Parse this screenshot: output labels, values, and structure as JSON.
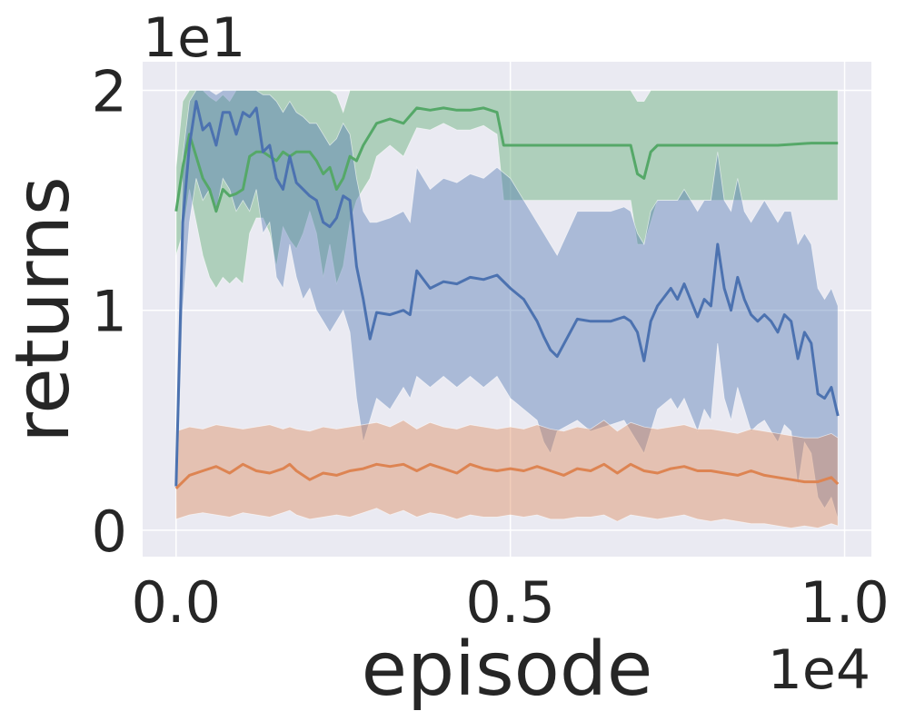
{
  "chart_data": {
    "type": "line",
    "title": "",
    "xlabel": "episode",
    "ylabel": "returns",
    "x_offset_label": "1e4",
    "y_offset_label": "1e1",
    "xlim": [
      -0.05,
      1.04
    ],
    "ylim": [
      -0.12,
      2.13
    ],
    "x_ticks": [
      0.0,
      0.5,
      1.0
    ],
    "x_tick_labels": [
      "0.0",
      "0.5",
      "1.0"
    ],
    "y_ticks": [
      0,
      1,
      2
    ],
    "y_tick_labels": [
      "0",
      "1",
      "2"
    ],
    "grid": true,
    "legend": "none",
    "colors": {
      "background": "#eaeaf2",
      "grid": "#ffffff",
      "blue": "#4c72b0",
      "orange": "#dd8452",
      "green": "#55a868"
    },
    "series": [
      {
        "color": "#55a868",
        "x": [
          0.0,
          0.01,
          0.02,
          0.03,
          0.04,
          0.05,
          0.06,
          0.07,
          0.08,
          0.09,
          0.1,
          0.11,
          0.12,
          0.13,
          0.14,
          0.15,
          0.16,
          0.17,
          0.18,
          0.19,
          0.2,
          0.21,
          0.22,
          0.23,
          0.24,
          0.25,
          0.26,
          0.27,
          0.28,
          0.29,
          0.3,
          0.32,
          0.34,
          0.36,
          0.38,
          0.4,
          0.42,
          0.44,
          0.46,
          0.48,
          0.49,
          0.5,
          0.55,
          0.6,
          0.65,
          0.68,
          0.69,
          0.7,
          0.71,
          0.72,
          0.75,
          0.8,
          0.85,
          0.9,
          0.95,
          0.99
        ],
        "mean": [
          1.45,
          1.65,
          1.8,
          1.7,
          1.6,
          1.55,
          1.45,
          1.55,
          1.52,
          1.53,
          1.55,
          1.7,
          1.72,
          1.72,
          1.7,
          1.68,
          1.72,
          1.7,
          1.72,
          1.72,
          1.72,
          1.68,
          1.62,
          1.65,
          1.55,
          1.6,
          1.7,
          1.68,
          1.75,
          1.8,
          1.85,
          1.87,
          1.85,
          1.92,
          1.91,
          1.92,
          1.91,
          1.91,
          1.92,
          1.9,
          1.75,
          1.75,
          1.75,
          1.75,
          1.75,
          1.75,
          1.62,
          1.6,
          1.72,
          1.75,
          1.75,
          1.75,
          1.75,
          1.75,
          1.76,
          1.76
        ],
        "upper": [
          1.65,
          1.95,
          2.0,
          2.0,
          2.0,
          1.97,
          1.95,
          1.98,
          1.95,
          2.0,
          2.0,
          2.0,
          2.0,
          2.0,
          2.0,
          2.0,
          2.0,
          2.0,
          2.0,
          2.0,
          2.0,
          2.0,
          2.0,
          2.0,
          1.98,
          1.9,
          2.0,
          2.0,
          2.0,
          2.0,
          2.0,
          2.0,
          2.0,
          2.0,
          2.0,
          2.0,
          2.0,
          2.0,
          2.0,
          2.0,
          2.0,
          2.0,
          2.0,
          2.0,
          2.0,
          2.0,
          1.95,
          1.95,
          2.0,
          2.0,
          2.0,
          2.0,
          2.0,
          2.0,
          2.0,
          2.0
        ],
        "lower": [
          1.25,
          1.35,
          1.55,
          1.4,
          1.25,
          1.15,
          1.1,
          1.15,
          1.12,
          1.15,
          1.12,
          1.35,
          1.42,
          1.42,
          1.35,
          1.2,
          1.38,
          1.32,
          1.28,
          1.35,
          1.45,
          1.35,
          1.15,
          1.3,
          1.12,
          1.2,
          1.4,
          1.5,
          1.55,
          1.6,
          1.7,
          1.75,
          1.7,
          1.83,
          1.82,
          1.85,
          1.82,
          1.82,
          1.84,
          1.8,
          1.5,
          1.5,
          1.5,
          1.5,
          1.5,
          1.5,
          1.3,
          1.3,
          1.4,
          1.5,
          1.5,
          1.5,
          1.5,
          1.5,
          1.5,
          1.5
        ]
      },
      {
        "color": "#4c72b0",
        "x": [
          0.0,
          0.005,
          0.01,
          0.02,
          0.03,
          0.04,
          0.05,
          0.06,
          0.07,
          0.08,
          0.09,
          0.1,
          0.11,
          0.12,
          0.13,
          0.14,
          0.15,
          0.16,
          0.17,
          0.18,
          0.19,
          0.2,
          0.21,
          0.22,
          0.23,
          0.24,
          0.25,
          0.26,
          0.27,
          0.28,
          0.29,
          0.3,
          0.32,
          0.34,
          0.35,
          0.36,
          0.38,
          0.4,
          0.42,
          0.44,
          0.46,
          0.48,
          0.5,
          0.52,
          0.54,
          0.55,
          0.56,
          0.57,
          0.6,
          0.62,
          0.65,
          0.67,
          0.68,
          0.69,
          0.7,
          0.71,
          0.72,
          0.74,
          0.75,
          0.76,
          0.78,
          0.79,
          0.8,
          0.81,
          0.82,
          0.83,
          0.84,
          0.85,
          0.86,
          0.87,
          0.88,
          0.89,
          0.9,
          0.91,
          0.92,
          0.93,
          0.94,
          0.95,
          0.96,
          0.97,
          0.98,
          0.99
        ],
        "mean": [
          0.2,
          0.8,
          1.4,
          1.75,
          1.95,
          1.82,
          1.85,
          1.75,
          1.9,
          1.9,
          1.8,
          1.9,
          1.88,
          1.92,
          1.72,
          1.75,
          1.6,
          1.55,
          1.7,
          1.58,
          1.55,
          1.52,
          1.5,
          1.4,
          1.38,
          1.42,
          1.52,
          1.5,
          1.2,
          1.05,
          0.87,
          0.99,
          0.98,
          1.0,
          0.98,
          1.18,
          1.1,
          1.13,
          1.12,
          1.15,
          1.14,
          1.16,
          1.1,
          1.05,
          0.95,
          0.88,
          0.82,
          0.79,
          0.96,
          0.95,
          0.95,
          0.97,
          0.95,
          0.9,
          0.77,
          0.95,
          1.02,
          1.1,
          1.05,
          1.12,
          0.97,
          1.05,
          1.02,
          1.3,
          1.1,
          1.0,
          1.15,
          1.05,
          0.98,
          0.95,
          0.98,
          0.95,
          0.9,
          0.98,
          0.95,
          0.78,
          0.9,
          0.85,
          0.62,
          0.6,
          0.65,
          0.52
        ],
        "upper": [
          0.3,
          1.0,
          1.7,
          1.95,
          2.0,
          2.0,
          2.0,
          1.98,
          2.0,
          2.0,
          2.0,
          2.0,
          2.0,
          2.0,
          1.98,
          1.98,
          1.95,
          1.9,
          1.95,
          1.9,
          1.88,
          1.85,
          1.85,
          1.8,
          1.75,
          1.78,
          1.85,
          1.8,
          1.6,
          1.45,
          1.4,
          1.4,
          1.42,
          1.45,
          1.4,
          1.65,
          1.55,
          1.6,
          1.58,
          1.62,
          1.6,
          1.65,
          1.6,
          1.5,
          1.4,
          1.35,
          1.3,
          1.25,
          1.45,
          1.45,
          1.45,
          1.47,
          1.45,
          1.35,
          1.3,
          1.45,
          1.5,
          1.5,
          1.5,
          1.55,
          1.45,
          1.5,
          1.5,
          1.72,
          1.5,
          1.45,
          1.6,
          1.45,
          1.4,
          1.45,
          1.5,
          1.45,
          1.4,
          1.45,
          1.45,
          1.3,
          1.35,
          1.3,
          1.1,
          1.05,
          1.1,
          1.02
        ],
        "lower": [
          0.1,
          0.5,
          1.0,
          1.4,
          1.6,
          1.5,
          1.55,
          1.45,
          1.6,
          1.55,
          1.45,
          1.5,
          1.45,
          1.55,
          1.35,
          1.4,
          1.15,
          1.1,
          1.3,
          1.15,
          1.05,
          1.1,
          1.0,
          0.95,
          0.9,
          0.95,
          1.0,
          0.9,
          0.6,
          0.4,
          0.5,
          0.6,
          0.55,
          0.65,
          0.6,
          0.7,
          0.65,
          0.7,
          0.65,
          0.7,
          0.65,
          0.7,
          0.6,
          0.55,
          0.5,
          0.4,
          0.35,
          0.45,
          0.5,
          0.45,
          0.48,
          0.5,
          0.45,
          0.4,
          0.35,
          0.45,
          0.55,
          0.6,
          0.55,
          0.6,
          0.45,
          0.55,
          0.5,
          0.85,
          0.6,
          0.5,
          0.65,
          0.55,
          0.45,
          0.48,
          0.5,
          0.45,
          0.4,
          0.48,
          0.45,
          0.2,
          0.4,
          0.35,
          0.15,
          0.1,
          0.15,
          0.05
        ]
      },
      {
        "color": "#dd8452",
        "x": [
          0.0,
          0.02,
          0.04,
          0.06,
          0.08,
          0.1,
          0.12,
          0.14,
          0.16,
          0.17,
          0.18,
          0.2,
          0.22,
          0.24,
          0.26,
          0.28,
          0.3,
          0.32,
          0.34,
          0.36,
          0.38,
          0.4,
          0.42,
          0.44,
          0.46,
          0.48,
          0.5,
          0.52,
          0.54,
          0.56,
          0.58,
          0.6,
          0.62,
          0.64,
          0.66,
          0.68,
          0.7,
          0.72,
          0.74,
          0.76,
          0.78,
          0.8,
          0.82,
          0.84,
          0.86,
          0.88,
          0.9,
          0.92,
          0.94,
          0.96,
          0.98,
          0.99
        ],
        "mean": [
          0.19,
          0.25,
          0.27,
          0.29,
          0.26,
          0.3,
          0.27,
          0.26,
          0.28,
          0.3,
          0.27,
          0.23,
          0.26,
          0.25,
          0.27,
          0.28,
          0.3,
          0.29,
          0.3,
          0.27,
          0.3,
          0.28,
          0.26,
          0.3,
          0.28,
          0.27,
          0.28,
          0.27,
          0.29,
          0.27,
          0.25,
          0.28,
          0.27,
          0.3,
          0.26,
          0.3,
          0.27,
          0.26,
          0.28,
          0.29,
          0.27,
          0.27,
          0.26,
          0.25,
          0.27,
          0.25,
          0.24,
          0.23,
          0.22,
          0.22,
          0.24,
          0.21
        ],
        "upper": [
          0.45,
          0.47,
          0.46,
          0.48,
          0.47,
          0.46,
          0.47,
          0.48,
          0.46,
          0.47,
          0.46,
          0.45,
          0.47,
          0.46,
          0.47,
          0.48,
          0.49,
          0.47,
          0.5,
          0.46,
          0.49,
          0.47,
          0.46,
          0.48,
          0.47,
          0.46,
          0.47,
          0.46,
          0.48,
          0.46,
          0.45,
          0.47,
          0.46,
          0.5,
          0.45,
          0.49,
          0.47,
          0.46,
          0.47,
          0.48,
          0.46,
          0.46,
          0.45,
          0.44,
          0.46,
          0.45,
          0.44,
          0.43,
          0.42,
          0.42,
          0.44,
          0.42
        ],
        "lower": [
          0.05,
          0.07,
          0.08,
          0.07,
          0.06,
          0.08,
          0.07,
          0.06,
          0.08,
          0.09,
          0.07,
          0.05,
          0.06,
          0.07,
          0.06,
          0.08,
          0.1,
          0.07,
          0.09,
          0.06,
          0.08,
          0.07,
          0.05,
          0.07,
          0.06,
          0.06,
          0.07,
          0.06,
          0.07,
          0.05,
          0.05,
          0.06,
          0.06,
          0.07,
          0.04,
          0.07,
          0.06,
          0.05,
          0.06,
          0.07,
          0.05,
          0.04,
          0.05,
          0.04,
          0.03,
          0.03,
          0.02,
          0.01,
          0.02,
          0.01,
          0.03,
          0.02
        ]
      }
    ]
  }
}
